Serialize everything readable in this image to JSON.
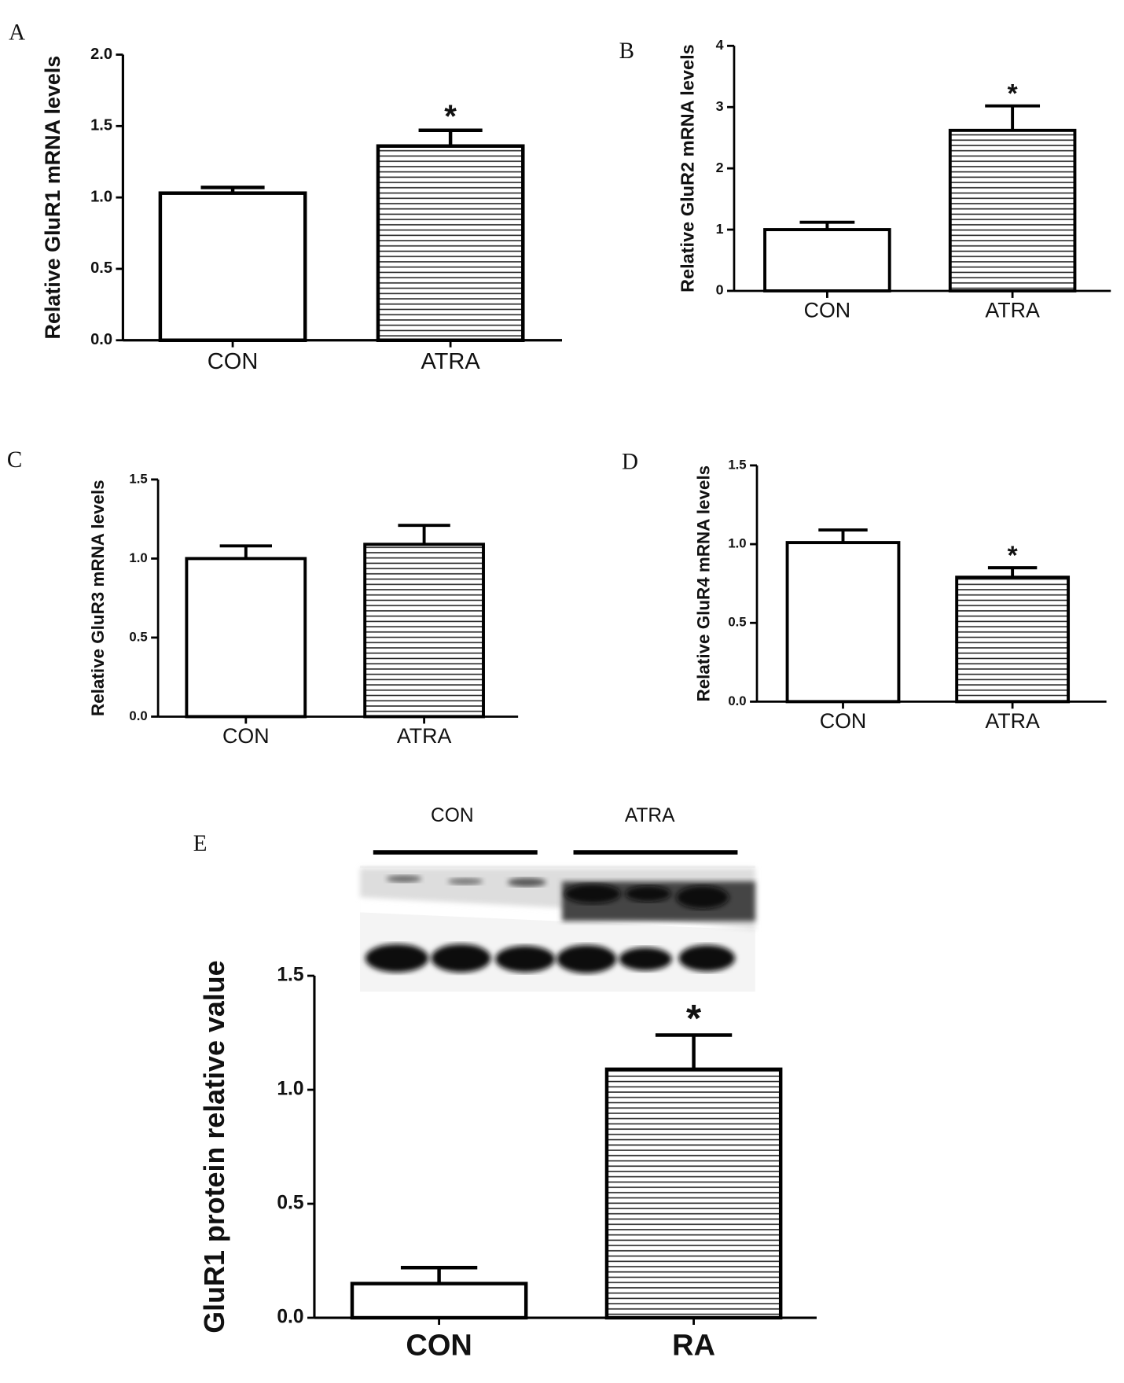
{
  "chart_data": [
    {
      "type": "bar",
      "panel": "A",
      "y_label": "Relative GluR1 mRNA levels",
      "categories": [
        "CON",
        "ATRA"
      ],
      "values": [
        1.03,
        1.36
      ],
      "errors": [
        0.04,
        0.11
      ],
      "ylim": [
        0,
        2
      ],
      "yticks": [
        {
          "value": 0,
          "label": "0.0"
        },
        {
          "value": 0.5,
          "label": "0.5"
        },
        {
          "value": 1,
          "label": "1.0"
        },
        {
          "value": 1.5,
          "label": "1.5"
        },
        {
          "value": 2,
          "label": "2.0"
        }
      ],
      "colors": [
        "#ffffff",
        "hatch"
      ],
      "annotations": [
        {
          "text": "*",
          "x": "ATRA"
        }
      ]
    },
    {
      "type": "bar",
      "panel": "B",
      "y_label": "Relative GluR2 mRNA levels",
      "categories": [
        "CON",
        "ATRA"
      ],
      "values": [
        1.0,
        2.62
      ],
      "errors": [
        0.12,
        0.4
      ],
      "ylim": [
        0,
        4
      ],
      "yticks": [
        0,
        1,
        2,
        3,
        4
      ],
      "colors": [
        "#ffffff",
        "hatch"
      ],
      "annotations": [
        {
          "text": "*",
          "x": "ATRA"
        }
      ]
    },
    {
      "type": "bar",
      "panel": "C",
      "y_label": "Relative GluR3 mRNA levels",
      "categories": [
        "CON",
        "ATRA"
      ],
      "values": [
        1.0,
        1.09
      ],
      "errors": [
        0.08,
        0.12
      ],
      "ylim": [
        0,
        1.5
      ],
      "yticks": [
        {
          "value": 0,
          "label": "0.0"
        },
        {
          "value": 0.5,
          "label": "0.5"
        },
        {
          "value": 1,
          "label": "1.0"
        },
        1.5
      ],
      "colors": [
        "#ffffff",
        "hatch"
      ],
      "annotations": []
    },
    {
      "type": "bar",
      "panel": "D",
      "y_label": "Relative GluR4 mRNA levels",
      "categories": [
        "CON",
        "ATRA"
      ],
      "values": [
        1.01,
        0.79
      ],
      "errors": [
        0.08,
        0.06
      ],
      "ylim": [
        0,
        1.5
      ],
      "yticks": [
        {
          "value": 0,
          "label": "0.0"
        },
        {
          "value": 0.5,
          "label": "0.5"
        },
        {
          "value": 1,
          "label": "1.0"
        },
        1.5
      ],
      "colors": [
        "#ffffff",
        "hatch"
      ],
      "annotations": [
        {
          "text": "*",
          "x": "ATRA"
        }
      ]
    },
    {
      "type": "bar",
      "panel": "E",
      "y_label": "GluR1 protein relative value",
      "categories": [
        "CON",
        "RA"
      ],
      "values": [
        0.15,
        1.09
      ],
      "errors": [
        0.07,
        0.15
      ],
      "ylim": [
        0,
        1.5
      ],
      "yticks": [
        {
          "value": 0,
          "label": "0.0"
        },
        {
          "value": 0.5,
          "label": "0.5"
        },
        {
          "value": 1,
          "label": "1.0"
        },
        1.5
      ],
      "colors": [
        "#ffffff",
        "hatch"
      ],
      "annotations": [
        {
          "text": "*",
          "x": "RA"
        }
      ],
      "blot_labels": [
        "CON",
        "ATRA"
      ]
    }
  ]
}
